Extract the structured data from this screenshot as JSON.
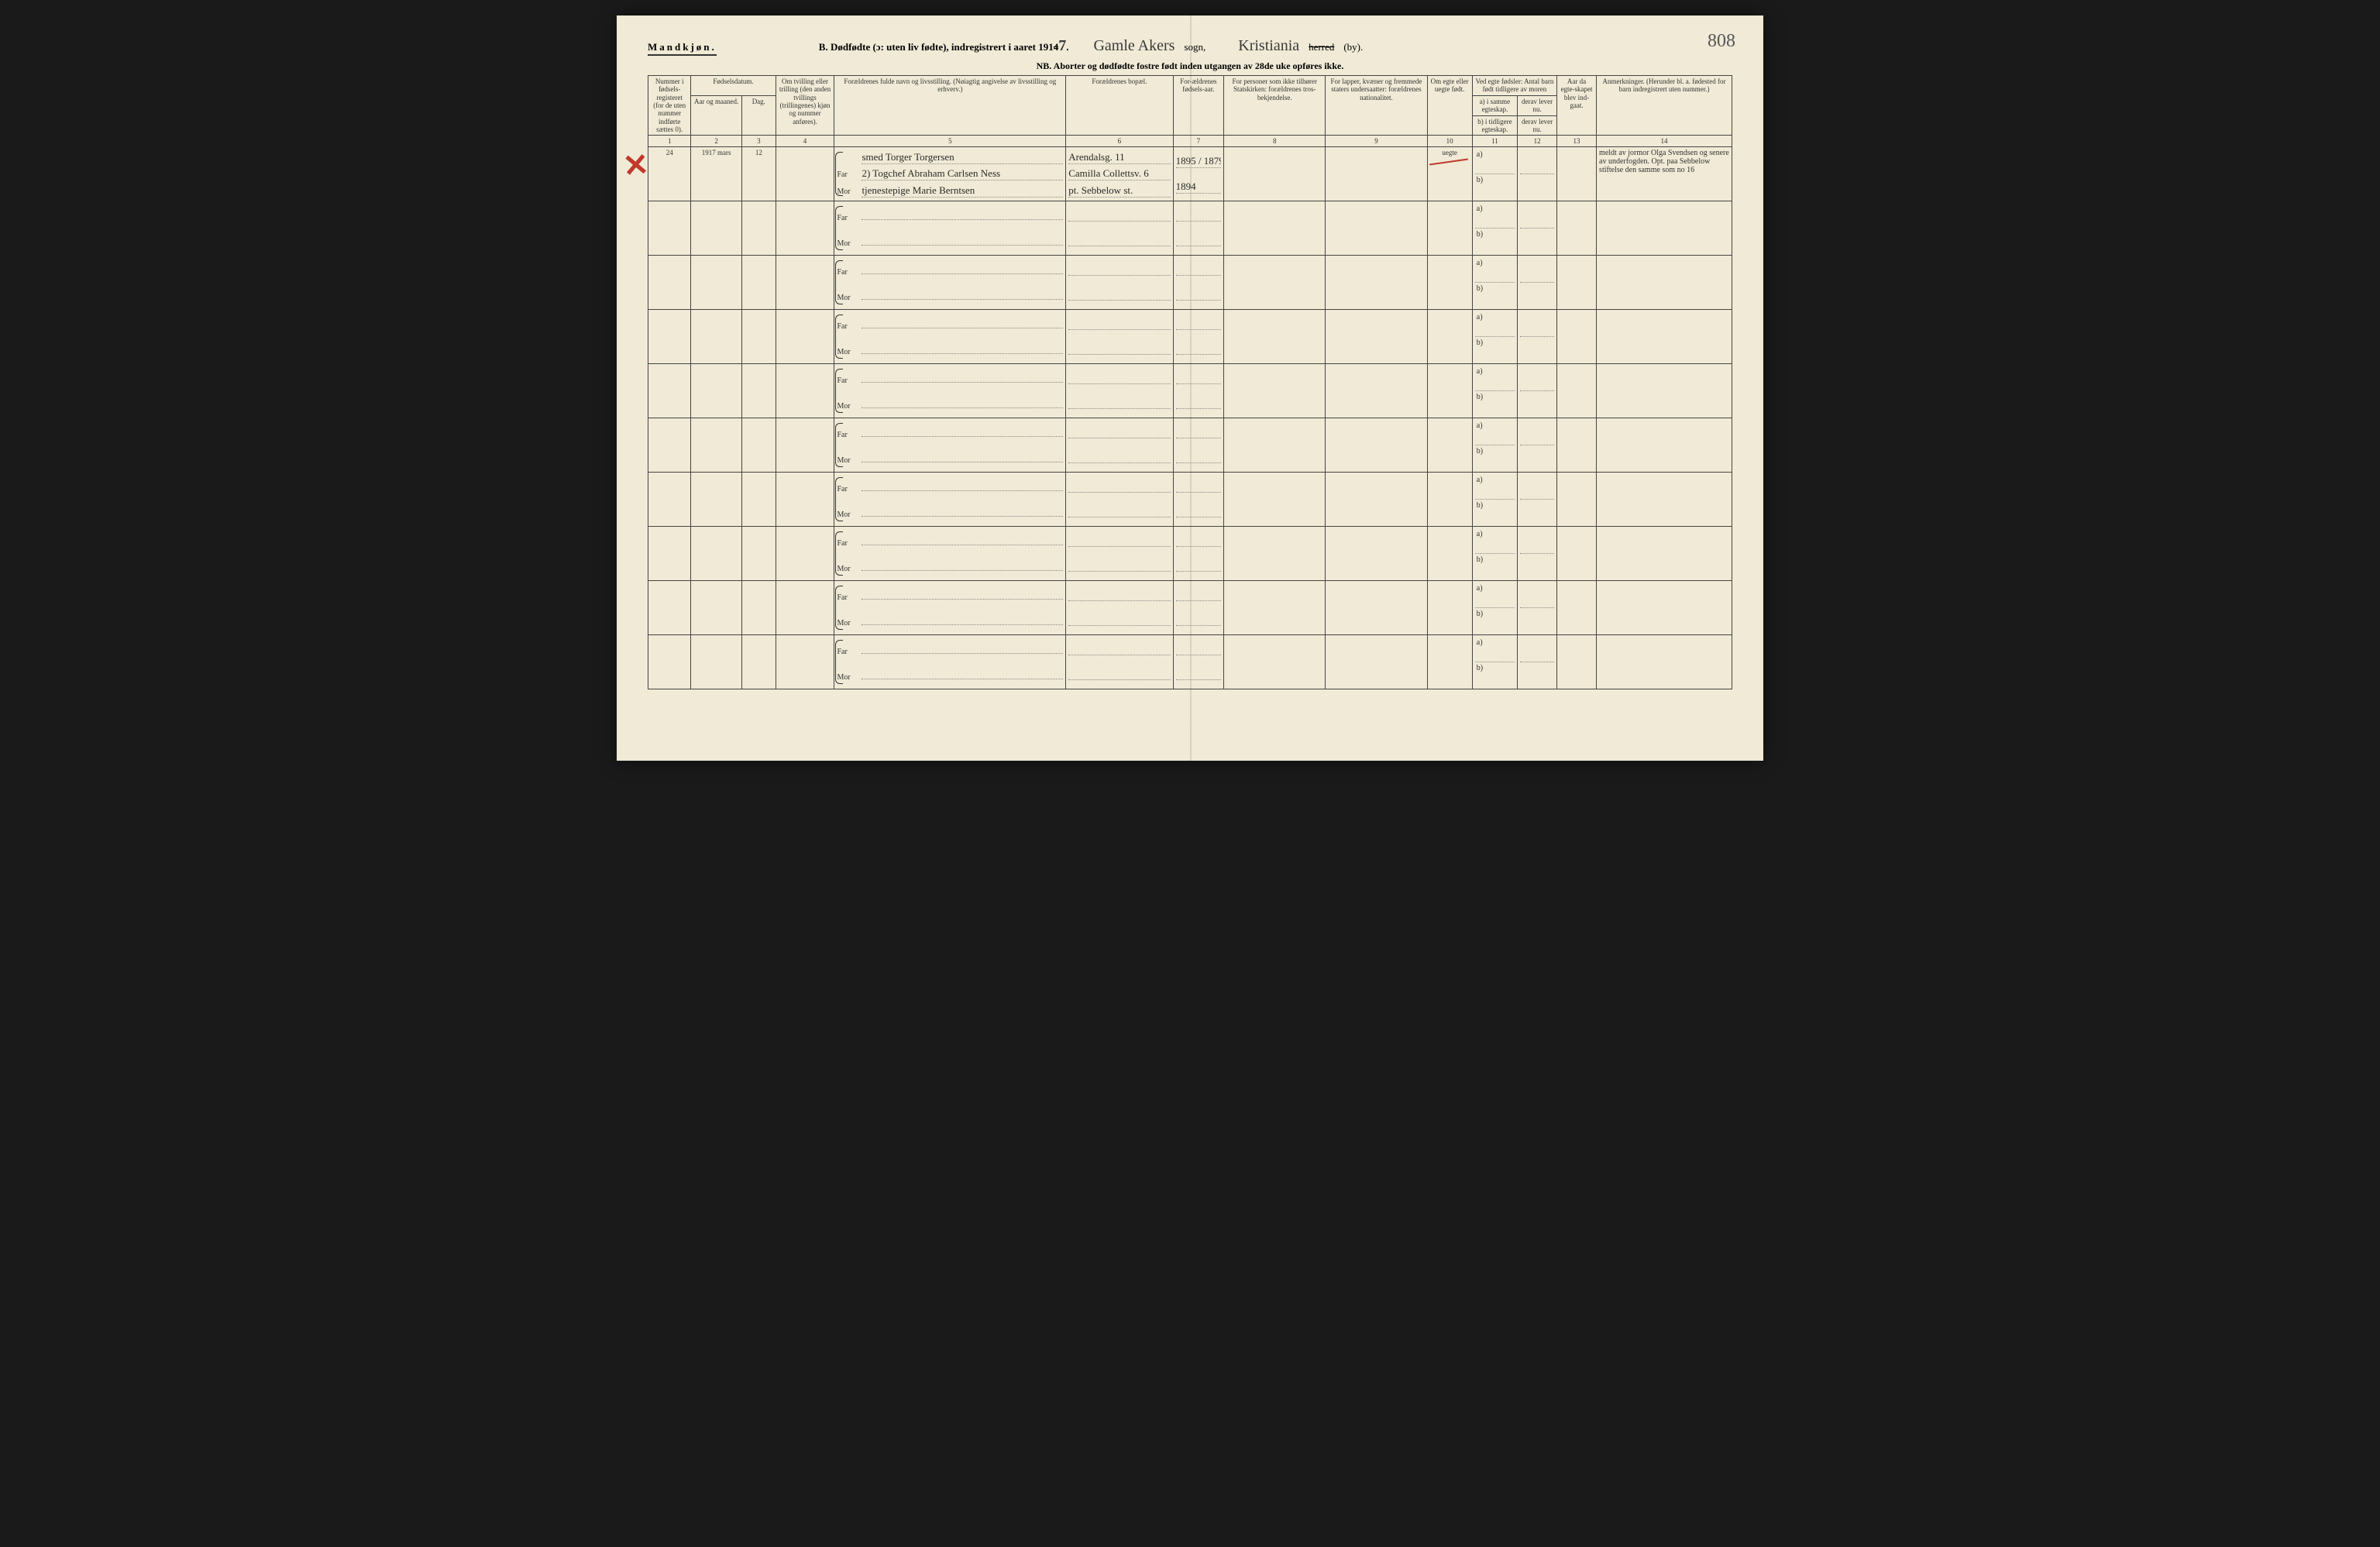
{
  "page_number": "808",
  "header": {
    "gender_label": "Mandkjøn.",
    "section_b": "B. Dødfødte (ɔ: uten liv fødte), indregistrert i aaret 191",
    "year_suffix_printed": "4",
    "year_overwrite": "7",
    "sogn_label": "sogn,",
    "sogn_value": "Gamle Akers",
    "herred_label": "herred",
    "by_label": "(by).",
    "by_value": "Kristiania",
    "nb_line": "NB. Aborter og dødfødte fostre født inden utgangen av 28de uke opføres ikke."
  },
  "columns": {
    "c1": "Nummer i fødsels-registeret (for de uten nummer indførte sættes 0).",
    "c2_group": "Fødselsdatum.",
    "c2a": "Aar og maaned.",
    "c2b": "Dag.",
    "c3": "Om tvilling eller trilling (den anden tvillings (trillingenes) kjøn og nummer anføres).",
    "c4": "Forældrenes fulde navn og livsstilling. (Nøiagtig angivelse av livsstilling og erhverv.)",
    "c5": "Forældrenes bopæl.",
    "c6": "For-ældrenes fødsels-aar.",
    "c7": "For personer som ikke tilhører Statskirken: forældrenes tros-bekjendelse.",
    "c8": "For lapper, kvæner og fremmede staters undersaatter: forældrenes nationalitet.",
    "c9": "Om egte eller uegte født.",
    "c10_top": "Ved egte fødsler: Antal barn født tidligere av moren",
    "c10a": "a) i samme egteskap.",
    "c10b": "b) i tidligere egteskap.",
    "c11a": "derav lever nu.",
    "c11b": "derav lever nu.",
    "c12": "Aar da egte-skapet blev ind-gaat.",
    "c13": "Anmerkninger. (Herunder bl. a. fødested for barn indregistrert uten nummer.)",
    "far": "Far",
    "mor": "Mor"
  },
  "colnums": [
    "1",
    "2",
    "3",
    "4",
    "5",
    "6",
    "7",
    "8",
    "9",
    "10",
    "11",
    "12",
    "13",
    "14"
  ],
  "entries": [
    {
      "num": "24",
      "year_month": "1917 mars",
      "day": "12",
      "twin": "",
      "top_note": "smed Torger Torgersen",
      "far": "2) Togchef Abraham Carlsen Ness",
      "mor": "tjenestepige Marie Berntsen",
      "bopael_top": "Arendalsg. 11",
      "bopael_far": "Camilla Collettsv. 6",
      "bopael_mor": "pt. Sebbelow st.",
      "faar_far": "1895 / 1879",
      "faar_mor": "1894",
      "tros": "",
      "nat": "",
      "egte": "uegte",
      "c10a": "",
      "c10b": "",
      "c11": "",
      "c12": "",
      "anm": "meldt av jormor Olga Svendsen og senere av underfogden. Opt. paa Sebbelow stiftelse den samme som no 16"
    }
  ],
  "styling": {
    "paper_bg": "#f0ead6",
    "ink": "#2a2a2a",
    "rule": "#444",
    "red": "#c0392b",
    "dotted": "#888",
    "handwritten_font": "cursive",
    "print_font": "Times New Roman",
    "base_fontsize_pt": 9,
    "header_fontsize_pt": 13,
    "handwritten_fontsize_pt": 20,
    "col_widths_pct": [
      3.8,
      4.5,
      3.0,
      5.2,
      20.5,
      9.5,
      4.5,
      9.0,
      9.0,
      4.0,
      4.0,
      3.5,
      3.5,
      12.0
    ]
  }
}
